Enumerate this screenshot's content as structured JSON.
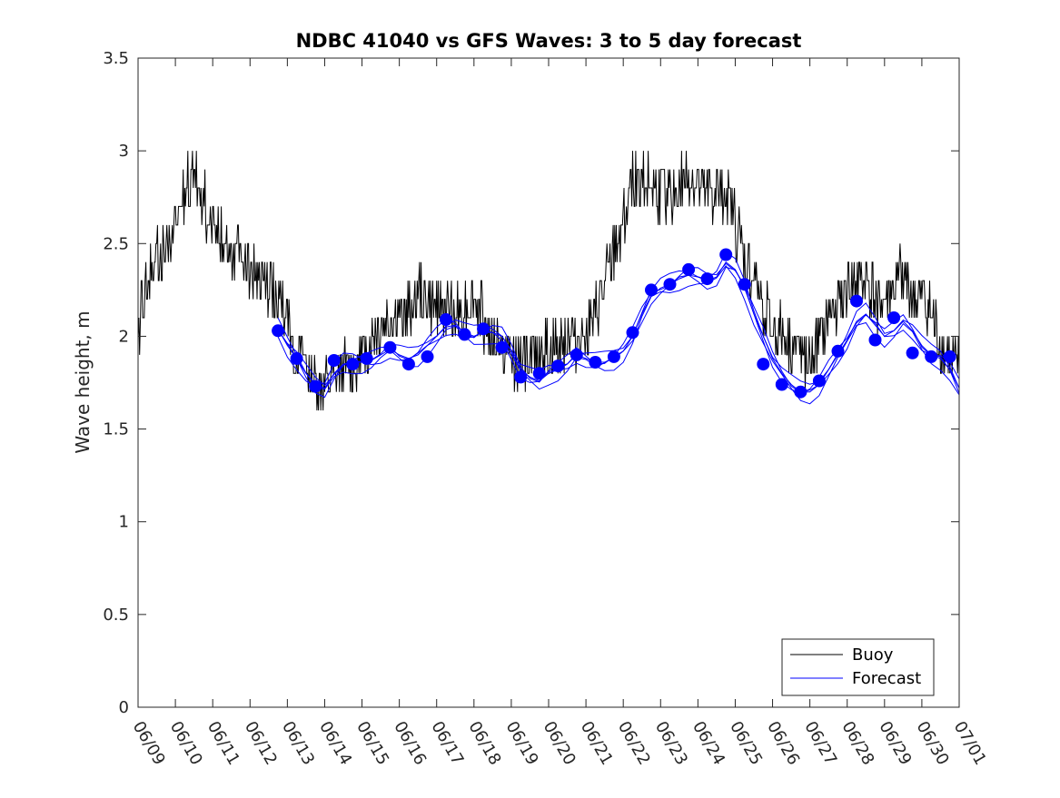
{
  "chart_data": {
    "type": "line",
    "title": "NDBC 41040 vs GFS Waves: 3 to 5 day forecast",
    "xlabel": "",
    "ylabel": "Wave height, m",
    "ylim": [
      0,
      3.5
    ],
    "xlim": [
      "06/09",
      "07/01"
    ],
    "y_ticks": [
      "0",
      "0.5",
      "1",
      "1.5",
      "2",
      "2.5",
      "3",
      "3.5"
    ],
    "x_ticks": [
      "06/09",
      "06/10",
      "06/11",
      "06/12",
      "06/13",
      "06/14",
      "06/15",
      "06/16",
      "06/17",
      "06/18",
      "06/19",
      "06/20",
      "06/21",
      "06/22",
      "06/23",
      "06/24",
      "06/25",
      "06/26",
      "06/27",
      "06/28",
      "06/29",
      "06/30",
      "07/01"
    ],
    "grid": false,
    "legend_position": "bottom-right",
    "series": [
      {
        "name": "Buoy",
        "color": "#000000",
        "style": "line",
        "x": [
          "06/09 00:00",
          "06/09 06:00",
          "06/09 12:00",
          "06/09 18:00",
          "06/10 00:00",
          "06/10 06:00",
          "06/10 12:00",
          "06/10 18:00",
          "06/11 00:00",
          "06/11 06:00",
          "06/11 12:00",
          "06/11 18:00",
          "06/12 00:00",
          "06/12 06:00",
          "06/12 12:00",
          "06/12 18:00",
          "06/13 00:00",
          "06/13 06:00",
          "06/13 12:00",
          "06/13 18:00",
          "06/14 00:00",
          "06/14 06:00",
          "06/14 12:00",
          "06/14 18:00",
          "06/15 00:00",
          "06/15 06:00",
          "06/15 12:00",
          "06/15 18:00",
          "06/16 00:00",
          "06/16 06:00",
          "06/16 12:00",
          "06/16 18:00",
          "06/17 00:00",
          "06/17 06:00",
          "06/17 12:00",
          "06/17 18:00",
          "06/18 00:00",
          "06/18 06:00",
          "06/18 12:00",
          "06/18 18:00",
          "06/19 00:00",
          "06/19 06:00",
          "06/19 12:00",
          "06/19 18:00",
          "06/20 00:00",
          "06/20 06:00",
          "06/20 12:00",
          "06/20 18:00",
          "06/21 00:00",
          "06/21 06:00",
          "06/21 12:00",
          "06/21 18:00",
          "06/22 00:00",
          "06/22 06:00",
          "06/22 12:00",
          "06/22 18:00",
          "06/23 00:00",
          "06/23 06:00",
          "06/23 12:00",
          "06/23 18:00",
          "06/24 00:00",
          "06/24 06:00",
          "06/24 12:00",
          "06/24 18:00",
          "06/25 00:00",
          "06/25 06:00",
          "06/25 12:00",
          "06/25 18:00",
          "06/26 00:00",
          "06/26 06:00",
          "06/26 12:00",
          "06/26 18:00",
          "06/27 00:00",
          "06/27 06:00",
          "06/27 12:00",
          "06/27 18:00",
          "06/28 00:00",
          "06/28 06:00",
          "06/28 12:00",
          "06/28 18:00",
          "06/29 00:00",
          "06/29 06:00",
          "06/29 12:00",
          "06/29 18:00",
          "06/30 00:00",
          "06/30 06:00",
          "06/30 12:00",
          "06/30 18:00",
          "07/01 00:00"
        ],
        "values": [
          2.05,
          2.3,
          2.45,
          2.45,
          2.6,
          2.8,
          2.85,
          2.75,
          2.6,
          2.55,
          2.5,
          2.45,
          2.35,
          2.3,
          2.25,
          2.2,
          2.1,
          1.9,
          1.85,
          1.75,
          1.72,
          1.75,
          1.8,
          1.85,
          1.9,
          2.0,
          2.05,
          2.1,
          2.1,
          2.15,
          2.25,
          2.2,
          2.15,
          2.15,
          2.1,
          2.15,
          2.2,
          2.1,
          2.0,
          1.95,
          1.9,
          1.85,
          1.9,
          1.95,
          1.9,
          1.95,
          2.0,
          2.0,
          2.05,
          2.1,
          2.25,
          2.45,
          2.65,
          2.8,
          2.85,
          2.8,
          2.75,
          2.75,
          2.8,
          2.85,
          2.8,
          2.75,
          2.75,
          2.8,
          2.6,
          2.4,
          2.3,
          2.15,
          2.05,
          2.0,
          1.95,
          1.9,
          1.85,
          1.95,
          2.1,
          2.2,
          2.25,
          2.3,
          2.3,
          2.2,
          2.15,
          2.25,
          2.35,
          2.2,
          2.2,
          2.1,
          1.95,
          1.85,
          1.8
        ]
      },
      {
        "name": "Forecast",
        "color": "#0000ff",
        "style": "line",
        "x": [
          "06/12 18:00",
          "06/13 00:00",
          "06/13 06:00",
          "06/13 12:00",
          "06/13 18:00",
          "06/14 00:00",
          "06/14 06:00",
          "06/14 12:00",
          "06/14 18:00",
          "06/15 00:00",
          "06/15 06:00",
          "06/15 12:00",
          "06/15 18:00",
          "06/16 00:00",
          "06/16 06:00",
          "06/16 12:00",
          "06/16 18:00",
          "06/17 00:00",
          "06/17 06:00",
          "06/17 12:00",
          "06/17 18:00",
          "06/18 00:00",
          "06/18 06:00",
          "06/18 12:00",
          "06/18 18:00",
          "06/19 00:00",
          "06/19 06:00",
          "06/19 12:00",
          "06/19 18:00",
          "06/20 00:00",
          "06/20 06:00",
          "06/20 12:00",
          "06/20 18:00",
          "06/21 00:00",
          "06/21 06:00",
          "06/21 12:00",
          "06/21 18:00",
          "06/22 00:00",
          "06/22 06:00",
          "06/22 12:00",
          "06/22 18:00",
          "06/23 00:00",
          "06/23 06:00",
          "06/23 12:00",
          "06/23 18:00",
          "06/24 00:00",
          "06/24 06:00",
          "06/24 12:00",
          "06/24 18:00",
          "06/25 00:00",
          "06/25 06:00",
          "06/25 12:00",
          "06/25 18:00",
          "06/26 00:00",
          "06/26 06:00",
          "06/26 12:00",
          "06/26 18:00",
          "06/27 00:00",
          "06/27 06:00",
          "06/27 12:00",
          "06/27 18:00",
          "06/28 00:00",
          "06/28 06:00",
          "06/28 12:00",
          "06/28 18:00",
          "06/29 00:00",
          "06/29 06:00",
          "06/29 12:00",
          "06/29 18:00",
          "06/30 00:00",
          "06/30 06:00",
          "06/30 12:00",
          "06/30 18:00",
          "07/01 00:00"
        ],
        "values": [
          2.04,
          1.95,
          1.88,
          1.8,
          1.74,
          1.72,
          1.8,
          1.85,
          1.86,
          1.86,
          1.87,
          1.9,
          1.93,
          1.9,
          1.88,
          1.9,
          1.95,
          2.0,
          2.05,
          2.06,
          2.02,
          2.0,
          2.02,
          2.02,
          2.0,
          1.92,
          1.82,
          1.78,
          1.76,
          1.8,
          1.82,
          1.85,
          1.9,
          1.88,
          1.86,
          1.86,
          1.88,
          1.92,
          2.0,
          2.12,
          2.22,
          2.26,
          2.28,
          2.31,
          2.33,
          2.32,
          2.3,
          2.32,
          2.4,
          2.36,
          2.26,
          2.12,
          2.0,
          1.88,
          1.8,
          1.74,
          1.7,
          1.7,
          1.74,
          1.82,
          1.9,
          1.98,
          2.08,
          2.12,
          2.06,
          2.0,
          2.03,
          2.08,
          2.03,
          1.95,
          1.9,
          1.88,
          1.82,
          1.72
        ]
      },
      {
        "name": "",
        "color": "#0000ff",
        "style": "markers",
        "x": [
          "06/12 18:00",
          "06/13 06:00",
          "06/13 18:00",
          "06/14 06:00",
          "06/14 18:00",
          "06/15 03:00",
          "06/15 18:00",
          "06/16 06:00",
          "06/16 18:00",
          "06/17 06:00",
          "06/17 18:00",
          "06/18 06:00",
          "06/18 18:00",
          "06/19 06:00",
          "06/19 18:00",
          "06/20 06:00",
          "06/20 18:00",
          "06/21 06:00",
          "06/21 18:00",
          "06/22 06:00",
          "06/22 18:00",
          "06/23 06:00",
          "06/23 18:00",
          "06/24 06:00",
          "06/24 18:00",
          "06/25 06:00",
          "06/25 18:00",
          "06/26 06:00",
          "06/26 18:00",
          "06/27 06:00",
          "06/27 18:00",
          "06/28 06:00",
          "06/28 18:00",
          "06/29 06:00",
          "06/29 18:00",
          "06/30 06:00",
          "06/30 18:00"
        ],
        "values": [
          2.03,
          1.88,
          1.73,
          1.87,
          1.85,
          1.88,
          1.94,
          1.85,
          1.89,
          2.09,
          2.01,
          2.04,
          1.94,
          1.78,
          1.8,
          1.84,
          1.9,
          1.86,
          1.89,
          2.02,
          2.25,
          2.28,
          2.36,
          2.31,
          2.44,
          2.28,
          1.85,
          1.74,
          1.7,
          1.76,
          1.92,
          2.19,
          1.98,
          2.1,
          1.91,
          1.89,
          1.89
        ]
      }
    ]
  }
}
